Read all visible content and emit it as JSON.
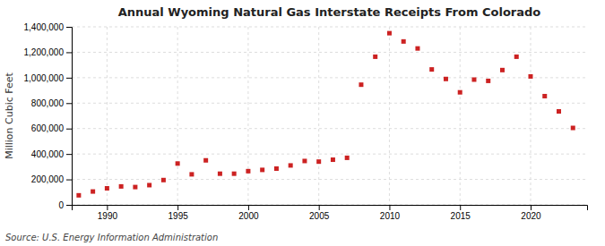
{
  "chart_data": {
    "type": "scatter",
    "title": "Annual Wyoming Natural Gas Interstate Receipts From Colorado",
    "ylabel": "Million Cubic Feet",
    "annotations": [
      "Source: U.S. Energy Information Administration"
    ],
    "x": [
      1988,
      1989,
      1990,
      1991,
      1992,
      1993,
      1994,
      1995,
      1996,
      1997,
      1998,
      1999,
      2000,
      2001,
      2002,
      2003,
      2004,
      2005,
      2006,
      2007,
      2008,
      2009,
      2010,
      2011,
      2012,
      2013,
      2014,
      2015,
      2016,
      2017,
      2018,
      2019,
      2020,
      2021,
      2022,
      2023
    ],
    "values": [
      75000,
      105000,
      130000,
      145000,
      140000,
      155000,
      195000,
      325000,
      240000,
      350000,
      245000,
      245000,
      265000,
      275000,
      285000,
      310000,
      345000,
      340000,
      355000,
      370000,
      945000,
      1165000,
      1350000,
      1285000,
      1230000,
      1065000,
      990000,
      885000,
      985000,
      975000,
      1060000,
      1165000,
      1010000,
      855000,
      735000,
      605000
    ],
    "color": "#cc2222",
    "marker": "square",
    "xlim": [
      1987.5,
      2024
    ],
    "xticks": [
      1990,
      1995,
      2000,
      2005,
      2010,
      2015,
      2020
    ],
    "ylim": [
      0,
      1400000
    ],
    "yticks": [
      0,
      {
        "value": 200000,
        "label": "200,000"
      },
      {
        "value": 400000,
        "label": "400,000"
      },
      {
        "value": 600000,
        "label": "600,000"
      },
      {
        "value": 800000,
        "label": "800,000"
      },
      {
        "value": 1000000,
        "label": "1,000,000"
      },
      {
        "value": 1200000,
        "label": "1,200,000"
      },
      {
        "value": 1400000,
        "label": "1,400,000"
      }
    ],
    "grid": true
  }
}
